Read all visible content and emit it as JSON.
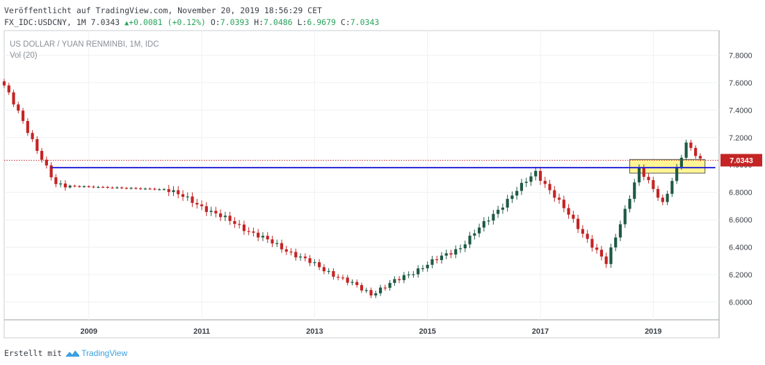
{
  "header": {
    "published": "Veröffentlicht auf TradingView.com, November 20, 2019 18:56:29 CET",
    "symbol": "FX_IDC:USDCNY, 1M 7.0343",
    "change": "+0.0081 (+0.12%)",
    "o_label": "O:",
    "o_value": "7.0393",
    "h_label": "H:",
    "h_value": "7.0486",
    "l_label": "L:",
    "l_value": "6.9679",
    "c_label": "C:",
    "c_value": "7.0343"
  },
  "footer": {
    "made_with": "Erstellt mit",
    "brand": "TradingView"
  },
  "colors": {
    "up": "#1f5a44",
    "down": "#c42424",
    "support_line": "#2323d6",
    "zone_fill": "#fff27a",
    "zone_border": "#555555",
    "price_tag": "#c42424",
    "grid": "#eef0f2"
  },
  "chart_data": {
    "type": "candlestick",
    "title": "US DOLLAR / YUAN RENMINBI, 1M, IDC",
    "indicator": "Vol (20)",
    "x_range": [
      "2007-07",
      "2020-03"
    ],
    "ylim": [
      5.87,
      7.98
    ],
    "y_ticks": [
      "7.8000",
      "7.6000",
      "7.4000",
      "7.2000",
      "7.0000",
      "6.8000",
      "6.6000",
      "6.4000",
      "6.2000",
      "6.0000"
    ],
    "x_ticks": [
      "2009",
      "2011",
      "2013",
      "2015",
      "2017",
      "2019"
    ],
    "last_price": "7.0343",
    "support_level": 6.98,
    "zone": {
      "from": "2018-08",
      "to": "2019-12",
      "low": 6.94,
      "high": 7.04
    },
    "key_points": [
      {
        "date": "2007-07",
        "value": 7.58
      },
      {
        "date": "2008-06",
        "value": 6.85
      },
      {
        "date": "2010-06",
        "value": 6.82
      },
      {
        "date": "2014-01",
        "value": 6.06
      },
      {
        "date": "2015-08",
        "value": 6.4
      },
      {
        "date": "2016-12",
        "value": 6.95
      },
      {
        "date": "2018-03",
        "value": 6.28
      },
      {
        "date": "2018-10",
        "value": 6.97
      },
      {
        "date": "2019-03",
        "value": 6.72
      },
      {
        "date": "2019-08",
        "value": 7.15
      },
      {
        "date": "2019-11",
        "value": 7.034
      }
    ],
    "grid": true
  }
}
